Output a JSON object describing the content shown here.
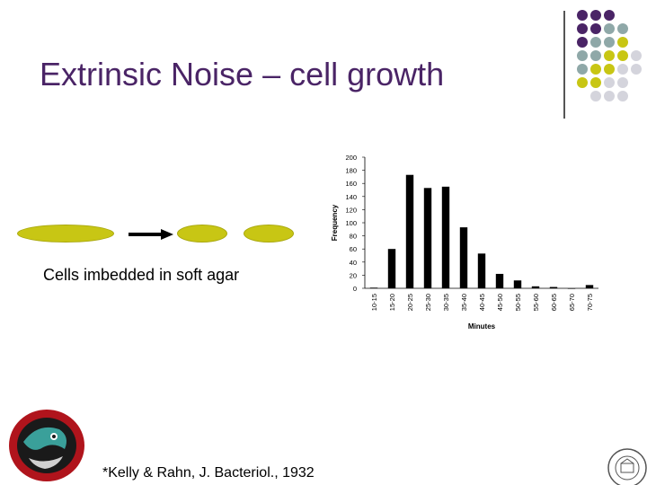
{
  "slide": {
    "title": "Extrinsic Noise – cell growth",
    "caption": "Cells imbedded in soft agar",
    "citation": "*Kelly & Rahn, J. Bacteriol., 1932"
  },
  "colors": {
    "title": "#4a2466",
    "cell": "#c8c614",
    "dot_purple": "#4a2466",
    "dot_teal": "#8fa8a8",
    "dot_olive": "#c8c614",
    "dot_grey": "#d4d4dc"
  },
  "chart_data": {
    "type": "bar",
    "categories": [
      "10-15",
      "15-20",
      "20-25",
      "25-30",
      "30-35",
      "35-40",
      "40-45",
      "45-50",
      "50-55",
      "55-60",
      "60-65",
      "65-70",
      "70-75"
    ],
    "values": [
      1,
      60,
      173,
      153,
      155,
      93,
      53,
      22,
      12,
      3,
      2,
      0,
      5
    ],
    "xlabel": "Minutes",
    "ylabel": "Frequency",
    "ylim": [
      0,
      200
    ],
    "yticks": [
      0,
      20,
      40,
      60,
      80,
      100,
      120,
      140,
      160,
      180,
      200
    ],
    "grid": false,
    "bar_color": "#000000"
  }
}
